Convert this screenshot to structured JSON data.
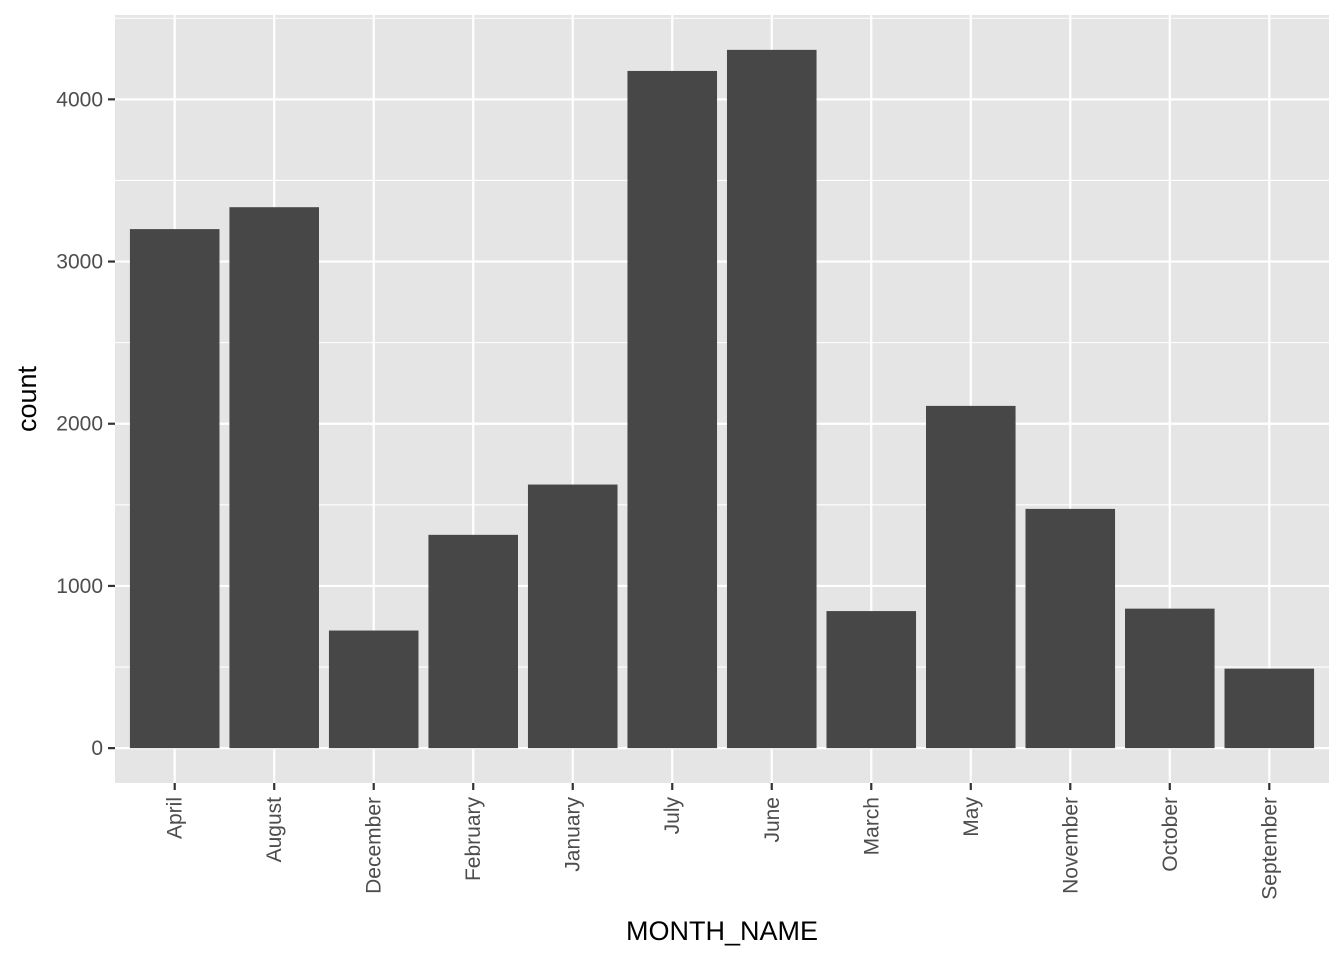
{
  "chart_data": {
    "type": "bar",
    "xlabel": "MONTH_NAME",
    "ylabel": "count",
    "categories": [
      "April",
      "August",
      "December",
      "February",
      "January",
      "July",
      "June",
      "March",
      "May",
      "November",
      "October",
      "September"
    ],
    "values": [
      3200,
      3335,
      725,
      1315,
      1625,
      4175,
      4305,
      845,
      2110,
      1475,
      860,
      490
    ],
    "yticks": [
      0,
      1000,
      2000,
      3000,
      4000
    ],
    "ylim": [
      -215,
      4520
    ],
    "grid": true,
    "colors": {
      "panel": "#e5e5e5",
      "grid": "#ffffff",
      "bar": "#474747"
    }
  }
}
